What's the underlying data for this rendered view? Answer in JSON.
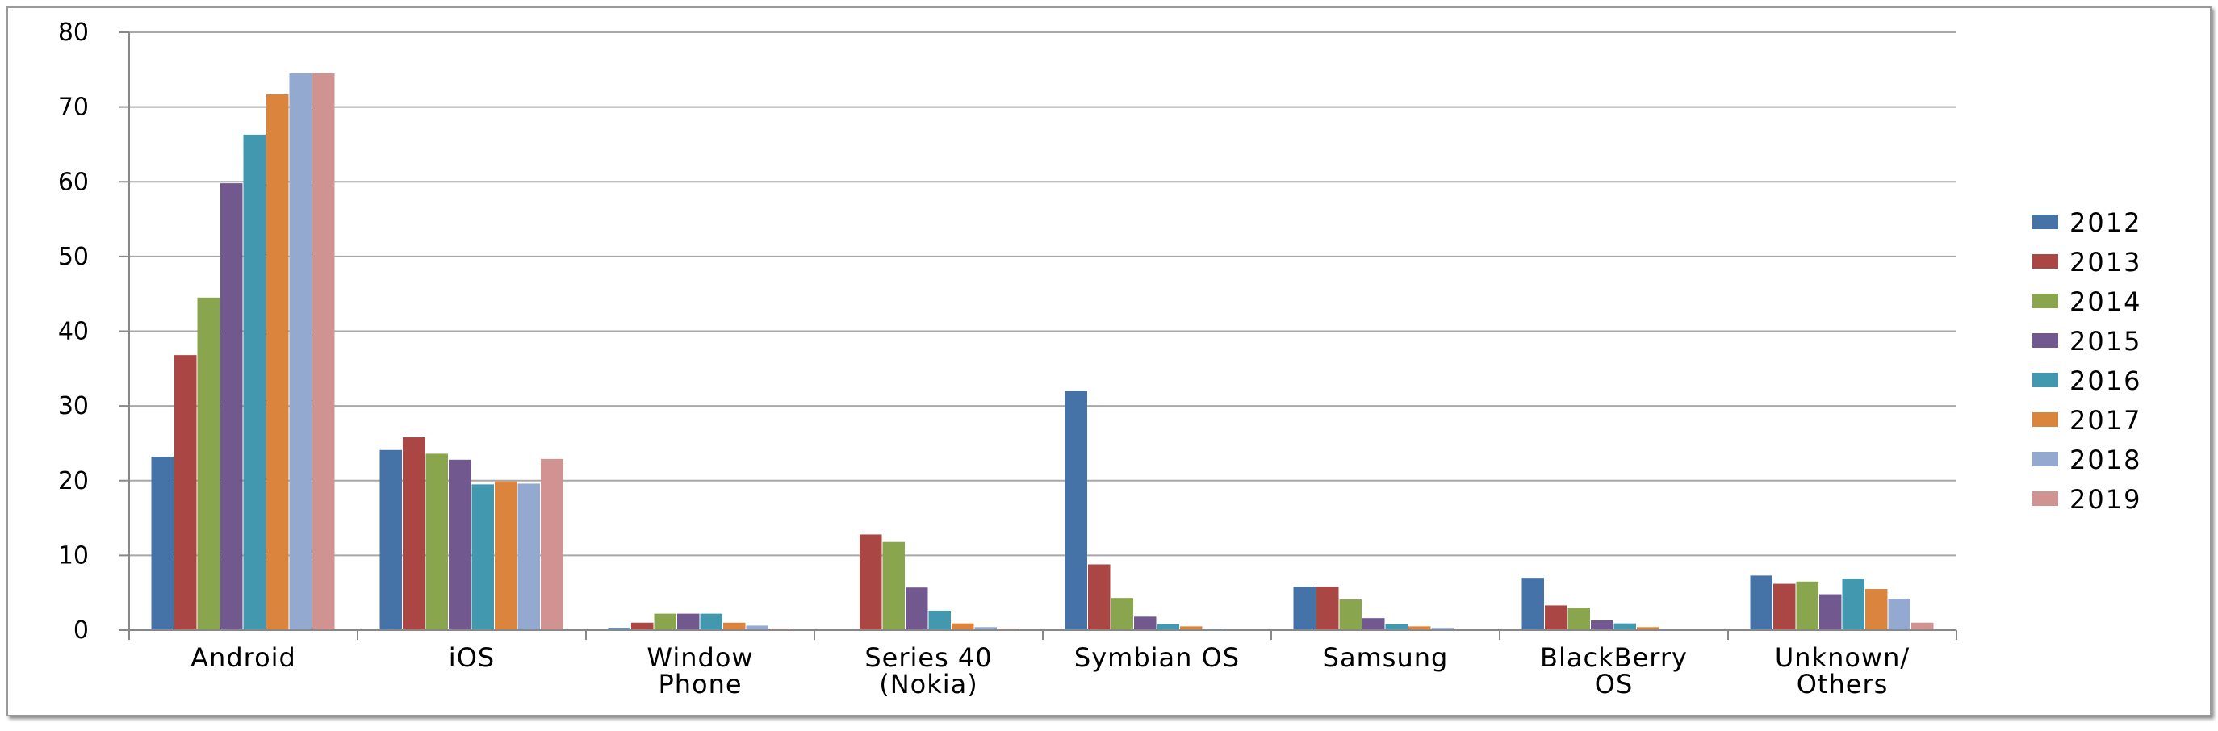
{
  "chart_data": {
    "type": "bar",
    "title": "",
    "xlabel": "",
    "ylabel": "",
    "ylim": [
      0,
      80
    ],
    "yticks": [
      0,
      10,
      20,
      30,
      40,
      50,
      60,
      70,
      80
    ],
    "grid": true,
    "legend_position": "right",
    "categories": [
      [
        "Android"
      ],
      [
        "iOS"
      ],
      [
        "Window",
        "Phone"
      ],
      [
        "Series 40",
        "(Nokia)"
      ],
      [
        "Symbian OS"
      ],
      [
        "Samsung"
      ],
      [
        "BlackBerry",
        "OS"
      ],
      [
        "Unknown/",
        "Others"
      ]
    ],
    "series": [
      {
        "name": "2012",
        "color": "#4572a7",
        "values": [
          23.2,
          24.1,
          0.3,
          0,
          32.0,
          5.8,
          7.0,
          7.3
        ]
      },
      {
        "name": "2013",
        "color": "#aa4643",
        "values": [
          36.8,
          25.8,
          1.0,
          12.8,
          8.8,
          5.8,
          3.3,
          6.2
        ]
      },
      {
        "name": "2014",
        "color": "#89a54e",
        "values": [
          44.5,
          23.6,
          2.2,
          11.8,
          4.3,
          4.1,
          3.0,
          6.5
        ]
      },
      {
        "name": "2015",
        "color": "#71588f",
        "values": [
          59.8,
          22.8,
          2.2,
          5.7,
          1.8,
          1.6,
          1.3,
          4.8
        ]
      },
      {
        "name": "2016",
        "color": "#4198af",
        "values": [
          66.3,
          19.5,
          2.2,
          2.6,
          0.8,
          0.8,
          0.9,
          6.9
        ]
      },
      {
        "name": "2017",
        "color": "#db843d",
        "values": [
          71.7,
          19.9,
          1.0,
          0.9,
          0.5,
          0.5,
          0.4,
          5.5
        ]
      },
      {
        "name": "2018",
        "color": "#93a9cf",
        "values": [
          74.5,
          19.6,
          0.6,
          0.4,
          0.2,
          0.3,
          0.1,
          4.2
        ]
      },
      {
        "name": "2019",
        "color": "#d19392",
        "values": [
          74.5,
          22.9,
          0.2,
          0.2,
          0.1,
          0.1,
          0.1,
          1.0
        ]
      }
    ]
  }
}
